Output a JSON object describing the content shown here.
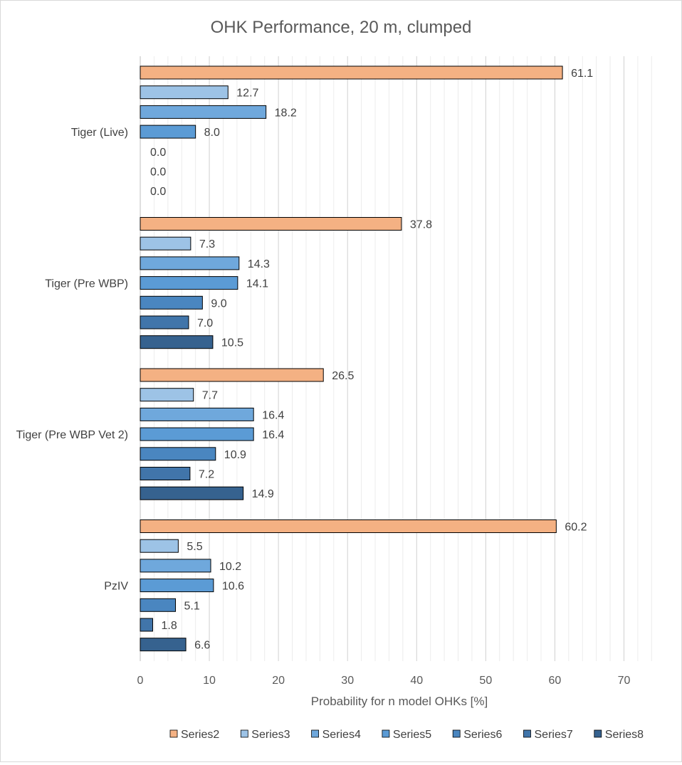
{
  "chart_data": {
    "type": "bar",
    "orientation": "horizontal",
    "title": "OHK Performance,  20 m, clumped",
    "xlabel": "Probability for n model OHKs [%]",
    "ylabel": "",
    "xlim": [
      0,
      75
    ],
    "xticks": [
      0,
      10,
      20,
      30,
      40,
      50,
      60,
      70
    ],
    "minor_grid_step": 2,
    "grid": true,
    "legend_position": "bottom",
    "categories": [
      "Tiger (Live)",
      "Tiger (Pre WBP)",
      "Tiger (Pre WBP Vet 2)",
      "PzIV"
    ],
    "series": [
      {
        "name": "Series2",
        "color": "#f4b183",
        "values": [
          61.1,
          37.8,
          26.5,
          60.2
        ]
      },
      {
        "name": "Series3",
        "color": "#9dc3e6",
        "values": [
          12.7,
          7.3,
          7.7,
          5.5
        ]
      },
      {
        "name": "Series4",
        "color": "#6fa8dc",
        "values": [
          18.2,
          14.3,
          16.4,
          10.2
        ]
      },
      {
        "name": "Series5",
        "color": "#5b9bd5",
        "values": [
          8.0,
          14.1,
          16.4,
          10.6
        ]
      },
      {
        "name": "Series6",
        "color": "#4a86c0",
        "values": [
          0.0,
          9.0,
          10.9,
          5.1
        ]
      },
      {
        "name": "Series7",
        "color": "#4175aa",
        "values": [
          0.0,
          7.0,
          7.2,
          1.8
        ]
      },
      {
        "name": "Series8",
        "color": "#36628f",
        "values": [
          0.0,
          10.5,
          14.9,
          6.6
        ]
      }
    ]
  }
}
